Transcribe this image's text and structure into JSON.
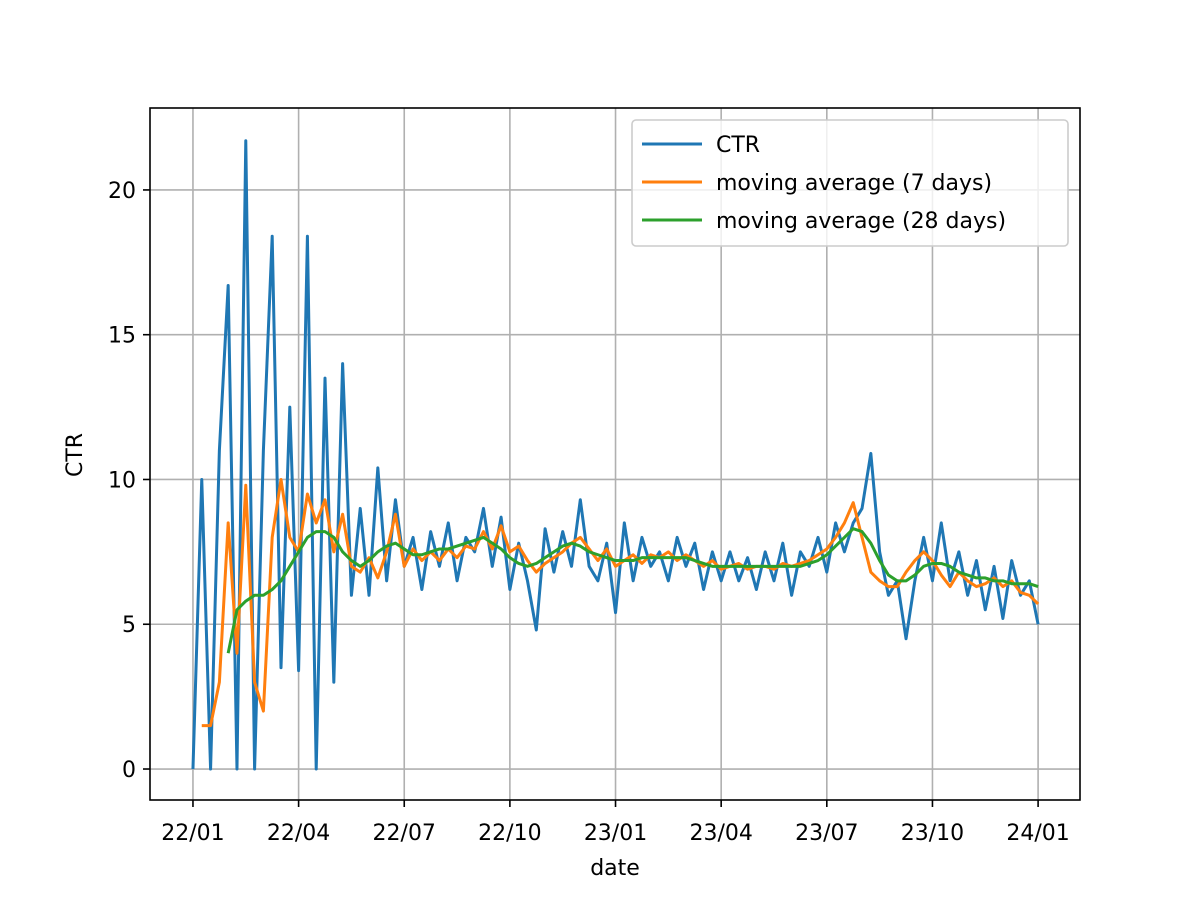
{
  "chart_data": {
    "type": "line",
    "x_label": "date",
    "y_label": "CTR",
    "x": [
      0,
      0.25,
      0.5,
      0.75,
      1,
      1.25,
      1.5,
      1.75,
      2,
      2.25,
      2.5,
      2.75,
      3,
      3.25,
      3.5,
      3.75,
      4,
      4.25,
      4.5,
      4.75,
      5,
      5.25,
      5.5,
      5.75,
      6,
      6.25,
      6.5,
      6.75,
      7,
      7.25,
      7.5,
      7.75,
      8,
      8.25,
      8.5,
      8.75,
      9,
      9.25,
      9.5,
      9.75,
      10,
      10.25,
      10.5,
      10.75,
      11,
      11.25,
      11.5,
      11.75,
      12,
      12.25,
      12.5,
      12.75,
      13,
      13.25,
      13.5,
      13.75,
      14,
      14.25,
      14.5,
      14.75,
      15,
      15.25,
      15.5,
      15.75,
      16,
      16.25,
      16.5,
      16.75,
      17,
      17.25,
      17.5,
      17.75,
      18,
      18.25,
      18.5,
      18.75,
      19,
      19.25,
      19.5,
      19.75,
      20,
      20.25,
      20.5,
      20.75,
      21,
      21.25,
      21.5,
      21.75,
      22,
      22.25,
      22.5,
      22.75,
      23,
      23.25,
      23.5,
      23.75,
      24
    ],
    "series": [
      {
        "name": "CTR",
        "color": "#1f77b4",
        "values": [
          0,
          10,
          0,
          11,
          16.7,
          0,
          21.7,
          0,
          11,
          18.4,
          3.5,
          12.5,
          3.4,
          18.4,
          0,
          13.5,
          3,
          14,
          6,
          9,
          6,
          10.4,
          6.5,
          9.3,
          7,
          8,
          6.2,
          8.2,
          7,
          8.5,
          6.5,
          8,
          7.5,
          9,
          7,
          8.7,
          6.2,
          7.8,
          6.5,
          4.8,
          8.3,
          6.8,
          8.2,
          7,
          9.3,
          7,
          6.5,
          7.8,
          5.4,
          8.5,
          6.5,
          8,
          7,
          7.5,
          6.5,
          8,
          7,
          7.8,
          6.2,
          7.5,
          6.5,
          7.5,
          6.5,
          7.3,
          6.2,
          7.5,
          6.5,
          7.8,
          6,
          7.5,
          7,
          8,
          6.8,
          8.5,
          7.5,
          8.5,
          9,
          10.9,
          7.5,
          6,
          6.5,
          4.5,
          6.5,
          8,
          6.5,
          8.5,
          6.5,
          7.5,
          6,
          7.2,
          5.5,
          7,
          5.2,
          7.2,
          6,
          6.5,
          5
        ]
      },
      {
        "name": "moving average (7 days)",
        "color": "#ff7f0e",
        "values": [
          null,
          1.5,
          1.5,
          3,
          8.5,
          4,
          9.8,
          3,
          2,
          8,
          10,
          8,
          7.5,
          9.5,
          8.5,
          9.3,
          7.5,
          8.8,
          7,
          6.8,
          7.3,
          6.6,
          7.5,
          8.8,
          7,
          7.6,
          7.2,
          7.5,
          7.2,
          7.6,
          7.3,
          7.7,
          7.6,
          8.2,
          7.6,
          8.4,
          7.5,
          7.7,
          7.2,
          6.8,
          7.1,
          7.3,
          7.5,
          7.8,
          8,
          7.6,
          7.2,
          7.6,
          7,
          7.2,
          7.4,
          7.1,
          7.4,
          7.3,
          7.5,
          7.2,
          7.4,
          7.2,
          7,
          7.2,
          6.9,
          7,
          7.1,
          6.9,
          7,
          7,
          6.9,
          7.1,
          7,
          7.1,
          7.2,
          7.4,
          7.6,
          8,
          8.5,
          9.2,
          8,
          6.8,
          6.5,
          6.3,
          6.3,
          6.8,
          7.2,
          7.5,
          7.2,
          6.7,
          6.3,
          6.8,
          6.5,
          6.3,
          6.4,
          6.6,
          6.3,
          6.5,
          6.1,
          6,
          5.7
        ]
      },
      {
        "name": "moving average (28 days)",
        "color": "#2ca02c",
        "values": [
          null,
          null,
          null,
          null,
          4,
          5.5,
          5.8,
          6,
          6,
          6.2,
          6.5,
          7,
          7.5,
          8,
          8.2,
          8.2,
          8,
          7.5,
          7.2,
          7,
          7.2,
          7.5,
          7.7,
          7.8,
          7.6,
          7.4,
          7.4,
          7.5,
          7.6,
          7.6,
          7.7,
          7.8,
          7.9,
          8,
          7.8,
          7.6,
          7.3,
          7.1,
          7,
          7.1,
          7.3,
          7.5,
          7.7,
          7.8,
          7.7,
          7.5,
          7.4,
          7.3,
          7.2,
          7.2,
          7.2,
          7.3,
          7.3,
          7.3,
          7.3,
          7.3,
          7.3,
          7.2,
          7.1,
          7,
          7,
          7,
          7,
          7,
          7,
          7,
          7,
          7,
          7,
          7,
          7.1,
          7.2,
          7.4,
          7.7,
          8,
          8.3,
          8.2,
          7.8,
          7.2,
          6.7,
          6.5,
          6.5,
          6.7,
          7,
          7.1,
          7.1,
          7,
          6.8,
          6.7,
          6.6,
          6.6,
          6.5,
          6.5,
          6.4,
          6.4,
          6.4,
          6.3
        ]
      }
    ],
    "xlim": [
      -1.22,
      25.19
    ],
    "xticks": [
      {
        "value": 0,
        "label": "22/01"
      },
      {
        "value": 3,
        "label": "22/04"
      },
      {
        "value": 6,
        "label": "22/07"
      },
      {
        "value": 9,
        "label": "22/10"
      },
      {
        "value": 12,
        "label": "23/01"
      },
      {
        "value": 15,
        "label": "23/04"
      },
      {
        "value": 18,
        "label": "23/07"
      },
      {
        "value": 21,
        "label": "23/10"
      },
      {
        "value": 24,
        "label": "24/01"
      }
    ],
    "ylim": [
      -1.07,
      22.83
    ],
    "yticks": [
      0,
      5,
      10,
      15,
      20
    ],
    "grid": true,
    "legend": "upper right"
  }
}
